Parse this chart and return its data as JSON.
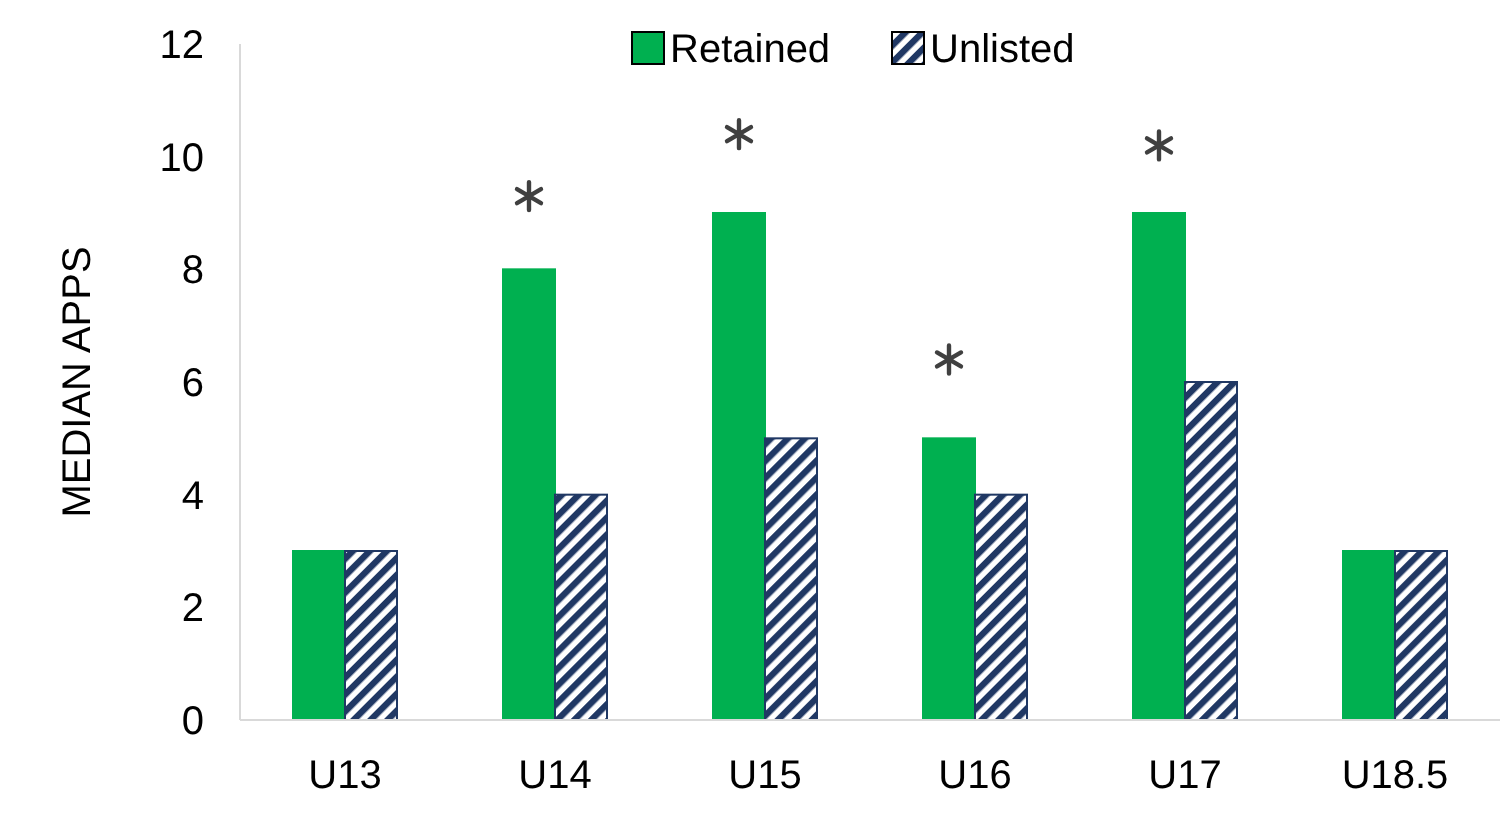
{
  "chart_data": {
    "type": "bar",
    "ylabel": "MEDIAN APPS",
    "categories": [
      "U13",
      "U14",
      "U15",
      "U16",
      "U17",
      "U18.5"
    ],
    "series": [
      {
        "name": "Retained",
        "color": "#00b050",
        "values": [
          3,
          8,
          9,
          5,
          9,
          3
        ]
      },
      {
        "name": "Unlisted",
        "color": "#203864",
        "values": [
          3,
          4,
          5,
          4,
          6,
          3
        ]
      },
      {
        "type": "scatter",
        "marker": "cross",
        "color": "#404040",
        "x": [
          "U14",
          "U15",
          "U16",
          "U17"
        ],
        "values": [
          9.3,
          10.4,
          6.4,
          10.2
        ]
      }
    ],
    "ylim": [
      0,
      12
    ],
    "yticks": [
      0,
      2,
      4,
      6,
      8,
      10,
      12
    ],
    "legend": "top"
  }
}
